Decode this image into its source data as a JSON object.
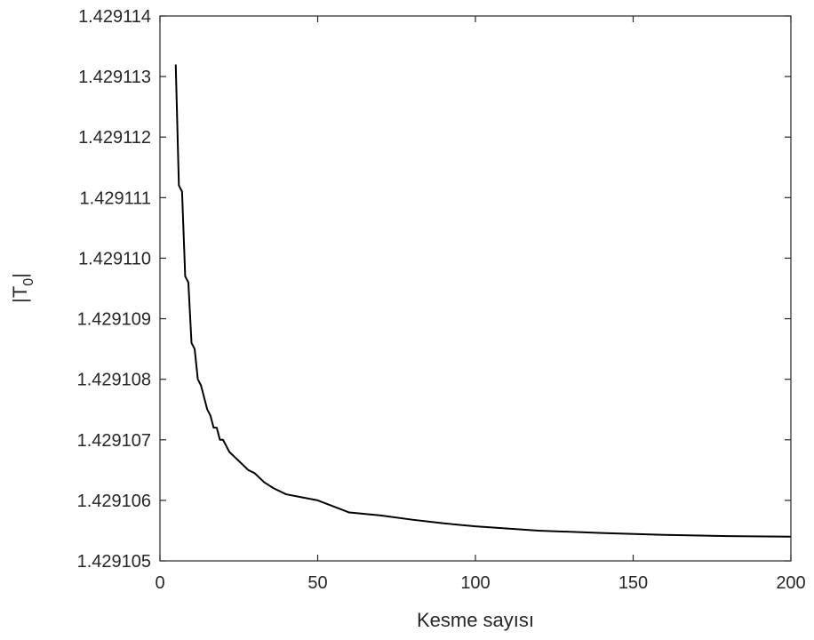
{
  "chart_data": {
    "type": "line",
    "title": "",
    "xlabel": "Kesme sayısı",
    "ylabel_main": "|T",
    "ylabel_sub": "0",
    "ylabel_end": "|",
    "xlim": [
      0,
      200
    ],
    "ylim": [
      1.429105,
      1.429114
    ],
    "xticks": [
      0,
      50,
      100,
      150,
      200
    ],
    "xtick_labels": [
      "0",
      "50",
      "100",
      "150",
      "200"
    ],
    "yticks": [
      1.429105,
      1.429106,
      1.429107,
      1.429108,
      1.429109,
      1.42911,
      1.429111,
      1.429112,
      1.429113,
      1.429114
    ],
    "ytick_labels": [
      "1.429105",
      "1.429106",
      "1.429107",
      "1.429108",
      "1.429109",
      "1.429110",
      "1.429111",
      "1.429112",
      "1.429113",
      "1.429114"
    ],
    "grid": false,
    "legend": "none",
    "series": [
      {
        "color": "#000000",
        "x": [
          5,
          6,
          7,
          8,
          9,
          10,
          11,
          12,
          13,
          14,
          15,
          16,
          17,
          18,
          19,
          20,
          22,
          24,
          26,
          28,
          30,
          33,
          36,
          40,
          45,
          50,
          60,
          70,
          80,
          90,
          100,
          120,
          140,
          160,
          180,
          200
        ],
        "y": [
          1.4291132,
          1.4291112,
          1.4291111,
          1.4291097,
          1.4291096,
          1.4291086,
          1.4291085,
          1.429108,
          1.4291079,
          1.4291077,
          1.4291075,
          1.4291074,
          1.4291072,
          1.4291072,
          1.429107,
          1.429107,
          1.4291068,
          1.4291067,
          1.4291066,
          1.4291065,
          1.42910645,
          1.4291063,
          1.4291062,
          1.4291061,
          1.42910605,
          1.429106,
          1.4291058,
          1.42910575,
          1.42910568,
          1.42910562,
          1.42910557,
          1.4291055,
          1.42910546,
          1.42910543,
          1.42910541,
          1.4291054
        ]
      }
    ]
  }
}
